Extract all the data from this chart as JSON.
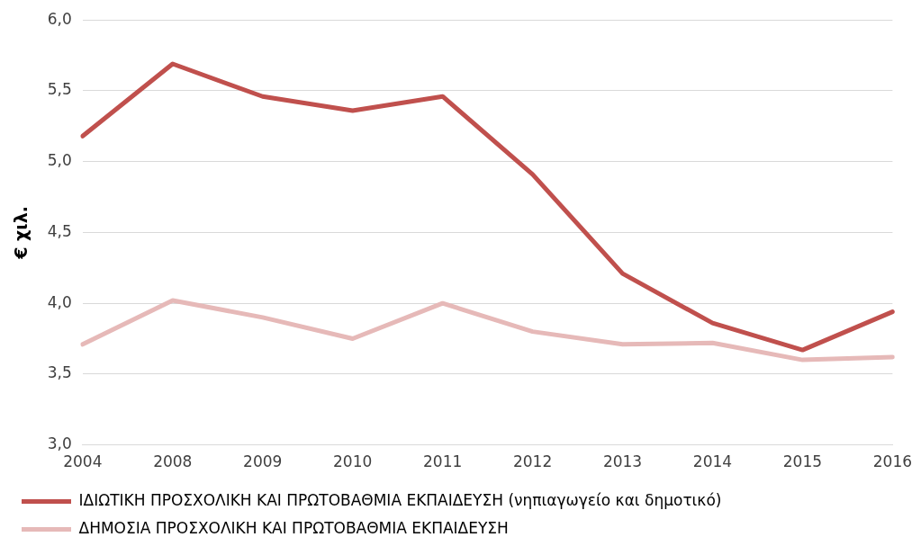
{
  "chart_data": {
    "type": "line",
    "ylabel": "€ χιλ.",
    "categories": [
      "2004",
      "2008",
      "2009",
      "2010",
      "2011",
      "2012",
      "2013",
      "2014",
      "2015",
      "2016"
    ],
    "series": [
      {
        "name": "ΙΔΙΩΤΙΚΗ ΠΡΟΣΧΟΛΙΚΗ ΚΑΙ ΠΡΩΤΟΒΑΘΜΙΑ ΕΚΠΑΙΔΕΥΣΗ (νηπιαγωγείο και δημοτικό)",
        "color": "#c0504d",
        "values": [
          5.18,
          5.69,
          5.46,
          5.36,
          5.46,
          4.91,
          4.21,
          3.86,
          3.67,
          3.94
        ]
      },
      {
        "name": "ΔΗΜΟΣΙΑ ΠΡΟΣΧΟΛΙΚΗ ΚΑΙ ΠΡΩΤΟΒΑΘΜΙΑ ΕΚΠΑΙΔΕΥΣΗ",
        "color": "#e6b9b8",
        "values": [
          3.71,
          4.02,
          3.9,
          3.75,
          4.0,
          3.8,
          3.71,
          3.72,
          3.6,
          3.62
        ]
      }
    ],
    "ylim": [
      3,
      6
    ],
    "yticks": [
      {
        "value": 3,
        "label": "3,0"
      },
      {
        "value": 3.5,
        "label": "3,5"
      },
      {
        "value": 4,
        "label": "4,0"
      },
      {
        "value": 4.5,
        "label": "4,5"
      },
      {
        "value": 5,
        "label": "5,0"
      },
      {
        "value": 5.5,
        "label": "5,5"
      },
      {
        "value": 6,
        "label": "6,0"
      }
    ],
    "grid": "y",
    "legend": "bottom",
    "marker": "none",
    "line_style": "solid"
  }
}
